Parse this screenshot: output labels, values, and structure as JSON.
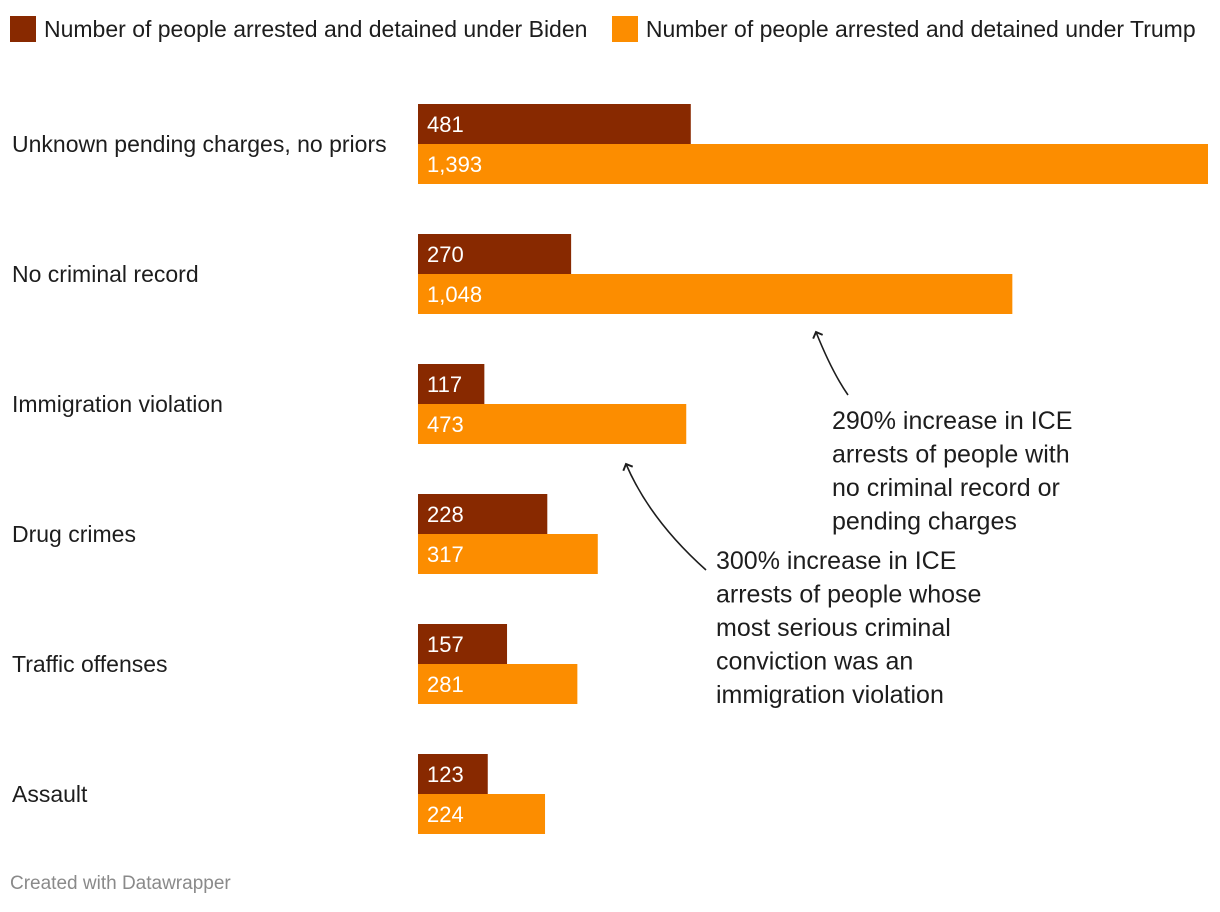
{
  "legend": [
    {
      "label": "Number of people arrested and detained under Biden",
      "color": "#882900"
    },
    {
      "label": "Number of people arrested and detained under Trump",
      "color": "#fc8d00"
    }
  ],
  "chart_data": {
    "type": "bar",
    "orientation": "horizontal",
    "categories": [
      "Unknown pending charges, no priors",
      "No criminal record",
      "Immigration violation",
      "Drug crimes",
      "Traffic offenses",
      "Assault"
    ],
    "series": [
      {
        "name": "Number of people arrested and detained under Biden",
        "color": "#882900",
        "values": [
          481,
          270,
          117,
          228,
          157,
          123
        ],
        "labels": [
          "481",
          "270",
          "117",
          "228",
          "157",
          "123"
        ]
      },
      {
        "name": "Number of people arrested and detained under Trump",
        "color": "#fc8d00",
        "values": [
          1393,
          1048,
          473,
          317,
          281,
          224
        ],
        "labels": [
          "1,393",
          "1,048",
          "473",
          "317",
          "281",
          "224"
        ]
      }
    ],
    "xlim": [
      0,
      1393
    ],
    "grid": false,
    "annotations": [
      {
        "lines": [
          "290% increase in ICE",
          "arrests of people with",
          "no criminal record or",
          "pending charges"
        ],
        "target": "No criminal record"
      },
      {
        "lines": [
          "300% increase in ICE",
          "arrests of people whose",
          "most serious criminal",
          "conviction was an",
          "immigration violation"
        ],
        "target": "Immigration violation"
      }
    ]
  },
  "footer": "Created with Datawrapper"
}
